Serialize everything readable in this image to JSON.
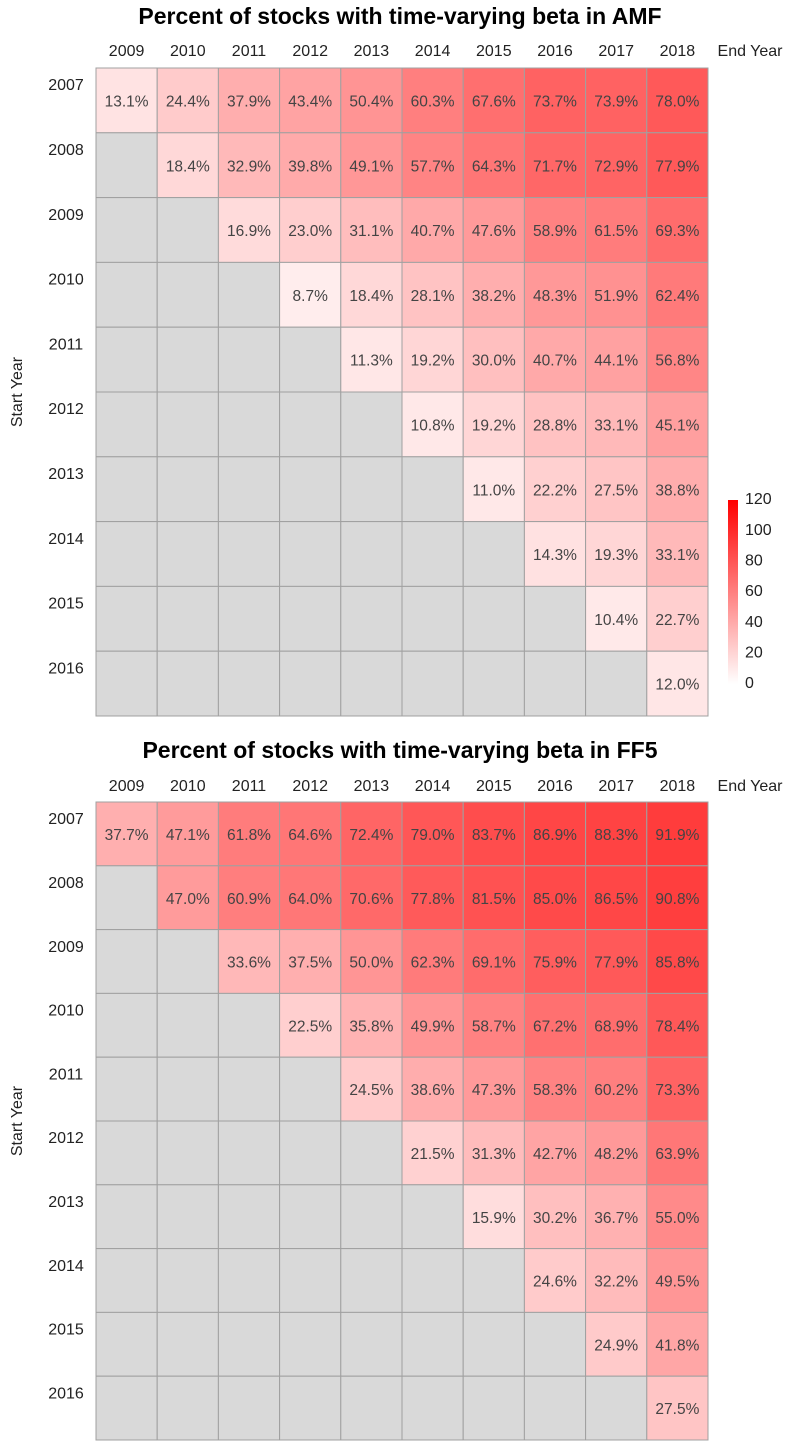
{
  "chart_data": [
    {
      "type": "heatmap",
      "title": "Percent of stocks with time-varying beta in AMF",
      "xlabel": "End Year",
      "ylabel": "Start Year",
      "columns": [
        "2009",
        "2010",
        "2011",
        "2012",
        "2013",
        "2014",
        "2015",
        "2016",
        "2017",
        "2018"
      ],
      "rows": [
        "2007",
        "2008",
        "2009",
        "2010",
        "2011",
        "2012",
        "2013",
        "2014",
        "2015",
        "2016"
      ],
      "values": [
        [
          13.1,
          24.4,
          37.9,
          43.4,
          50.4,
          60.3,
          67.6,
          73.7,
          73.9,
          78.0
        ],
        [
          null,
          18.4,
          32.9,
          39.8,
          49.1,
          57.7,
          64.3,
          71.7,
          72.9,
          77.9
        ],
        [
          null,
          null,
          16.9,
          23.0,
          31.1,
          40.7,
          47.6,
          58.9,
          61.5,
          69.3
        ],
        [
          null,
          null,
          null,
          8.7,
          18.4,
          28.1,
          38.2,
          48.3,
          51.9,
          62.4
        ],
        [
          null,
          null,
          null,
          null,
          11.3,
          19.2,
          30.0,
          40.7,
          44.1,
          56.8
        ],
        [
          null,
          null,
          null,
          null,
          null,
          10.8,
          19.2,
          28.8,
          33.1,
          45.1
        ],
        [
          null,
          null,
          null,
          null,
          null,
          null,
          11.0,
          22.2,
          27.5,
          38.8
        ],
        [
          null,
          null,
          null,
          null,
          null,
          null,
          null,
          14.3,
          19.3,
          33.1
        ],
        [
          null,
          null,
          null,
          null,
          null,
          null,
          null,
          null,
          10.4,
          22.7
        ],
        [
          null,
          null,
          null,
          null,
          null,
          null,
          null,
          null,
          null,
          12.0
        ]
      ],
      "value_labels": [
        [
          "13.1%",
          "24.4%",
          "37.9%",
          "43.4%",
          "50.4%",
          "60.3%",
          "67.6%",
          "73.7%",
          "73.9%",
          "78.0%"
        ],
        [
          null,
          "18.4%",
          "32.9%",
          "39.8%",
          "49.1%",
          "57.7%",
          "64.3%",
          "71.7%",
          "72.9%",
          "77.9%"
        ],
        [
          null,
          null,
          "16.9%",
          "23.0%",
          "31.1%",
          "40.7%",
          "47.6%",
          "58.9%",
          "61.5%",
          "69.3%"
        ],
        [
          null,
          null,
          null,
          "8.7%",
          "18.4%",
          "28.1%",
          "38.2%",
          "48.3%",
          "51.9%",
          "62.4%"
        ],
        [
          null,
          null,
          null,
          null,
          "11.3%",
          "19.2%",
          "30.0%",
          "40.7%",
          "44.1%",
          "56.8%"
        ],
        [
          null,
          null,
          null,
          null,
          null,
          "10.8%",
          "19.2%",
          "28.8%",
          "33.1%",
          "45.1%"
        ],
        [
          null,
          null,
          null,
          null,
          null,
          null,
          "11.0%",
          "22.2%",
          "27.5%",
          "38.8%"
        ],
        [
          null,
          null,
          null,
          null,
          null,
          null,
          null,
          "14.3%",
          "19.3%",
          "33.1%"
        ],
        [
          null,
          null,
          null,
          null,
          null,
          null,
          null,
          null,
          "10.4%",
          "22.7%"
        ],
        [
          null,
          null,
          null,
          null,
          null,
          null,
          null,
          null,
          null,
          "12.0%"
        ]
      ],
      "colorscale": [
        "#ffffff",
        "#ff0000"
      ],
      "missing_color": "#d9d9d9",
      "clim": [
        0,
        120
      ],
      "cticks": [
        0,
        20,
        40,
        60,
        80,
        100,
        120
      ],
      "colorbar": true
    },
    {
      "type": "heatmap",
      "title": "Percent of stocks with time-varying beta in FF5",
      "xlabel": "End Year",
      "ylabel": "Start Year",
      "columns": [
        "2009",
        "2010",
        "2011",
        "2012",
        "2013",
        "2014",
        "2015",
        "2016",
        "2017",
        "2018"
      ],
      "rows": [
        "2007",
        "2008",
        "2009",
        "2010",
        "2011",
        "2012",
        "2013",
        "2014",
        "2015",
        "2016"
      ],
      "values": [
        [
          37.7,
          47.1,
          61.8,
          64.6,
          72.4,
          79.0,
          83.7,
          86.9,
          88.3,
          91.9
        ],
        [
          null,
          47.0,
          60.9,
          64.0,
          70.6,
          77.8,
          81.5,
          85.0,
          86.5,
          90.8
        ],
        [
          null,
          null,
          33.6,
          37.5,
          50.0,
          62.3,
          69.1,
          75.9,
          77.9,
          85.8
        ],
        [
          null,
          null,
          null,
          22.5,
          35.8,
          49.9,
          58.7,
          67.2,
          68.9,
          78.4
        ],
        [
          null,
          null,
          null,
          null,
          24.5,
          38.6,
          47.3,
          58.3,
          60.2,
          73.3
        ],
        [
          null,
          null,
          null,
          null,
          null,
          21.5,
          31.3,
          42.7,
          48.2,
          63.9
        ],
        [
          null,
          null,
          null,
          null,
          null,
          null,
          15.9,
          30.2,
          36.7,
          55.0
        ],
        [
          null,
          null,
          null,
          null,
          null,
          null,
          null,
          24.6,
          32.2,
          49.5
        ],
        [
          null,
          null,
          null,
          null,
          null,
          null,
          null,
          null,
          24.9,
          41.8
        ],
        [
          null,
          null,
          null,
          null,
          null,
          null,
          null,
          null,
          null,
          27.5
        ]
      ],
      "value_labels": [
        [
          "37.7%",
          "47.1%",
          "61.8%",
          "64.6%",
          "72.4%",
          "79.0%",
          "83.7%",
          "86.9%",
          "88.3%",
          "91.9%"
        ],
        [
          null,
          "47.0%",
          "60.9%",
          "64.0%",
          "70.6%",
          "77.8%",
          "81.5%",
          "85.0%",
          "86.5%",
          "90.8%"
        ],
        [
          null,
          null,
          "33.6%",
          "37.5%",
          "50.0%",
          "62.3%",
          "69.1%",
          "75.9%",
          "77.9%",
          "85.8%"
        ],
        [
          null,
          null,
          null,
          "22.5%",
          "35.8%",
          "49.9%",
          "58.7%",
          "67.2%",
          "68.9%",
          "78.4%"
        ],
        [
          null,
          null,
          null,
          null,
          "24.5%",
          "38.6%",
          "47.3%",
          "58.3%",
          "60.2%",
          "73.3%"
        ],
        [
          null,
          null,
          null,
          null,
          null,
          "21.5%",
          "31.3%",
          "42.7%",
          "48.2%",
          "63.9%"
        ],
        [
          null,
          null,
          null,
          null,
          null,
          null,
          "15.9%",
          "30.2%",
          "36.7%",
          "55.0%"
        ],
        [
          null,
          null,
          null,
          null,
          null,
          null,
          null,
          "24.6%",
          "32.2%",
          "49.5%"
        ],
        [
          null,
          null,
          null,
          null,
          null,
          null,
          null,
          null,
          "24.9%",
          "41.8%"
        ],
        [
          null,
          null,
          null,
          null,
          null,
          null,
          null,
          null,
          null,
          "27.5%"
        ]
      ],
      "colorscale": [
        "#ffffff",
        "#ff0000"
      ],
      "missing_color": "#d9d9d9",
      "clim": [
        0,
        120
      ],
      "colorbar": false
    }
  ]
}
